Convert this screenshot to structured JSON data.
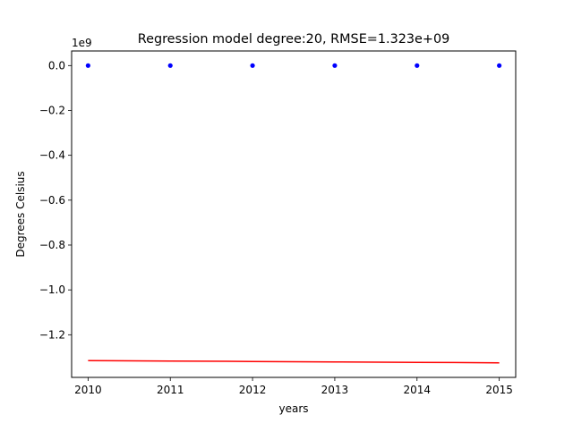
{
  "chart_data": {
    "type": "line",
    "title": "Regression model degree:20, RMSE=1.323e+09",
    "xlabel": "years",
    "ylabel": "Degrees Celsius",
    "y_scale_label": "1e9",
    "y_scale_factor": 1000000000,
    "xlim": [
      2009.8,
      2015.2
    ],
    "ylim": [
      -1.39,
      0.065
    ],
    "x_ticks": [
      2010,
      2011,
      2012,
      2013,
      2014,
      2015
    ],
    "x_tick_labels": [
      "2010",
      "2011",
      "2012",
      "2013",
      "2014",
      "2015"
    ],
    "y_ticks": [
      0.0,
      -0.2,
      -0.4,
      -0.6,
      -0.8,
      -1.0,
      -1.2
    ],
    "y_tick_labels": [
      "0.0",
      "−0.2",
      "−0.4",
      "−0.6",
      "−0.8",
      "−1.0",
      "−1.2"
    ],
    "grid": false,
    "series": [
      {
        "kind": "scatter",
        "color": "#0000ff",
        "x": [
          2010,
          2011,
          2012,
          2013,
          2014,
          2015
        ],
        "y": [
          0.0,
          0.0,
          0.0,
          0.0,
          0.0,
          0.0
        ]
      },
      {
        "kind": "line",
        "color": "#ff0000",
        "x": [
          2010,
          2011,
          2012,
          2013,
          2014,
          2015
        ],
        "y": [
          -1.315,
          -1.317,
          -1.319,
          -1.321,
          -1.323,
          -1.325
        ]
      }
    ]
  }
}
